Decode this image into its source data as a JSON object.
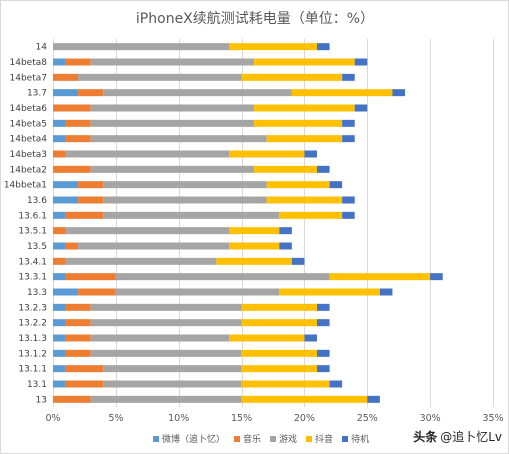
{
  "chart_data": {
    "type": "bar",
    "orientation": "horizontal",
    "stacked": true,
    "title": "iPhoneX续航测试耗电量（单位：%）",
    "categories": [
      "14",
      "14beta8",
      "14beta7",
      "13.7",
      "14beta6",
      "14beta5",
      "14beta4",
      "14beta3",
      "14beta2",
      "14bbeta1",
      "13.6",
      "13.6.1",
      "13.5.1",
      "13.5",
      "13.4.1",
      "13.3.1",
      "13.3",
      "13.2.3",
      "13.2.2",
      "13.1.3",
      "13.1.2",
      "13.1.1",
      "13.1",
      "13"
    ],
    "series": [
      {
        "name": "微博（追卜忆）",
        "color": "#5B9BD5",
        "values": [
          0,
          1,
          0,
          2,
          0,
          1,
          1,
          0,
          0,
          2,
          2,
          1,
          0,
          1,
          0,
          1,
          2,
          1,
          1,
          1,
          1,
          1,
          1,
          0
        ]
      },
      {
        "name": "音乐",
        "color": "#ED7D31",
        "values": [
          0,
          2,
          2,
          2,
          3,
          2,
          2,
          1,
          3,
          2,
          2,
          3,
          1,
          1,
          1,
          4,
          3,
          2,
          2,
          2,
          2,
          3,
          3,
          3
        ]
      },
      {
        "name": "游戏",
        "color": "#A5A5A5",
        "values": [
          14,
          13,
          13,
          15,
          13,
          13,
          14,
          13,
          13,
          13,
          13,
          14,
          13,
          12,
          12,
          17,
          13,
          12,
          12,
          11,
          12,
          11,
          11,
          12
        ]
      },
      {
        "name": "抖音",
        "color": "#FFC000",
        "values": [
          7,
          8,
          8,
          8,
          8,
          7,
          6,
          6,
          5,
          5,
          6,
          5,
          4,
          4,
          6,
          8,
          8,
          6,
          6,
          6,
          6,
          6,
          7,
          10
        ]
      },
      {
        "name": "待机",
        "color": "#4472C4",
        "values": [
          1,
          1,
          1,
          1,
          1,
          1,
          1,
          1,
          1,
          1,
          1,
          1,
          1,
          1,
          1,
          1,
          1,
          1,
          1,
          1,
          1,
          1,
          1,
          1
        ]
      }
    ],
    "xlim": [
      0,
      35
    ],
    "xticks": [
      0,
      5,
      10,
      15,
      20,
      25,
      30,
      35
    ],
    "xtick_labels": [
      "0%",
      "5%",
      "10%",
      "15%",
      "20%",
      "25%",
      "30%",
      "35%"
    ],
    "grid": true,
    "legend": "bottom"
  },
  "watermark": {
    "brand": "头条",
    "handle": "@追卜忆Lv"
  }
}
